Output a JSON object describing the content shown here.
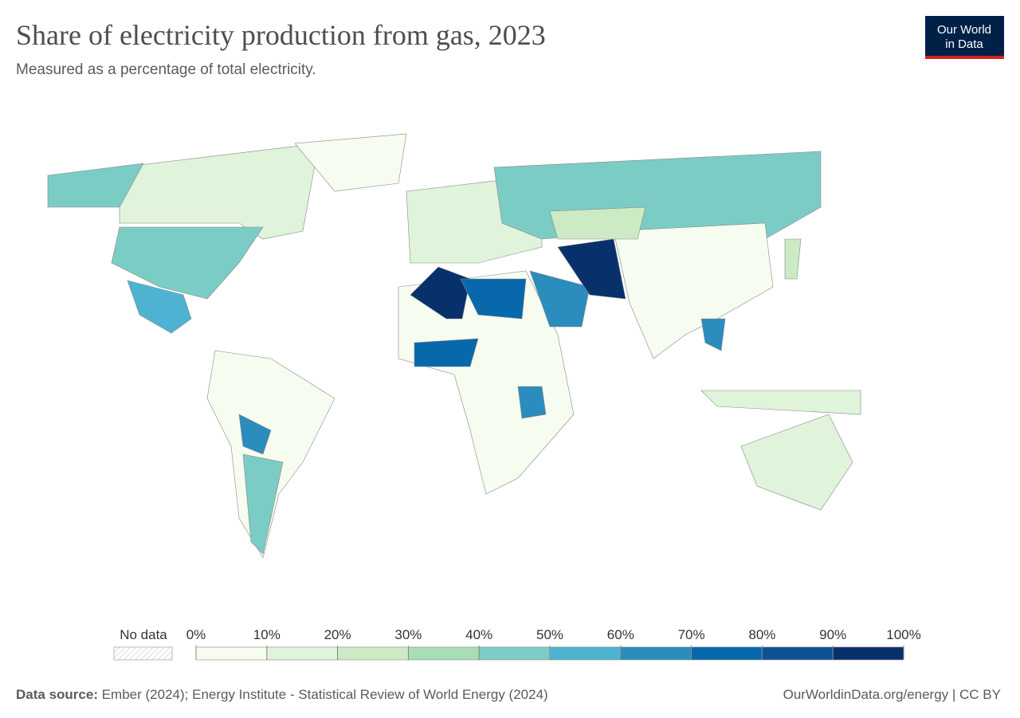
{
  "chart_data": {
    "type": "choropleth",
    "title": "Share of electricity production from gas, 2023",
    "subtitle": "Measured as a percentage of total electricity.",
    "logo": [
      "Our World",
      "in Data"
    ],
    "no_data_label": "No data",
    "legend_ticks": [
      {
        "value": 0,
        "label": "0%"
      },
      {
        "value": 10,
        "label": "10%"
      },
      {
        "value": 20,
        "label": "20%"
      },
      {
        "value": 30,
        "label": "30%"
      },
      {
        "value": 40,
        "label": "40%"
      },
      {
        "value": 50,
        "label": "50%"
      },
      {
        "value": 60,
        "label": "60%"
      },
      {
        "value": 70,
        "label": "70%"
      },
      {
        "value": 80,
        "label": "80%"
      },
      {
        "value": 90,
        "label": "90%"
      },
      {
        "value": 100,
        "label": "100%"
      }
    ],
    "colors": [
      "#f7fcf0",
      "#e0f3db",
      "#ccebc5",
      "#a8ddb5",
      "#7bccc4",
      "#4eb3d3",
      "#2b8cbe",
      "#0868ac",
      "#0b5394",
      "#08306b"
    ],
    "source_label": "Data source:",
    "source": "Ember (2024); Energy Institute - Statistical Review of World Energy (2024)",
    "url": "OurWorldinData.org/energy | CC BY"
  }
}
